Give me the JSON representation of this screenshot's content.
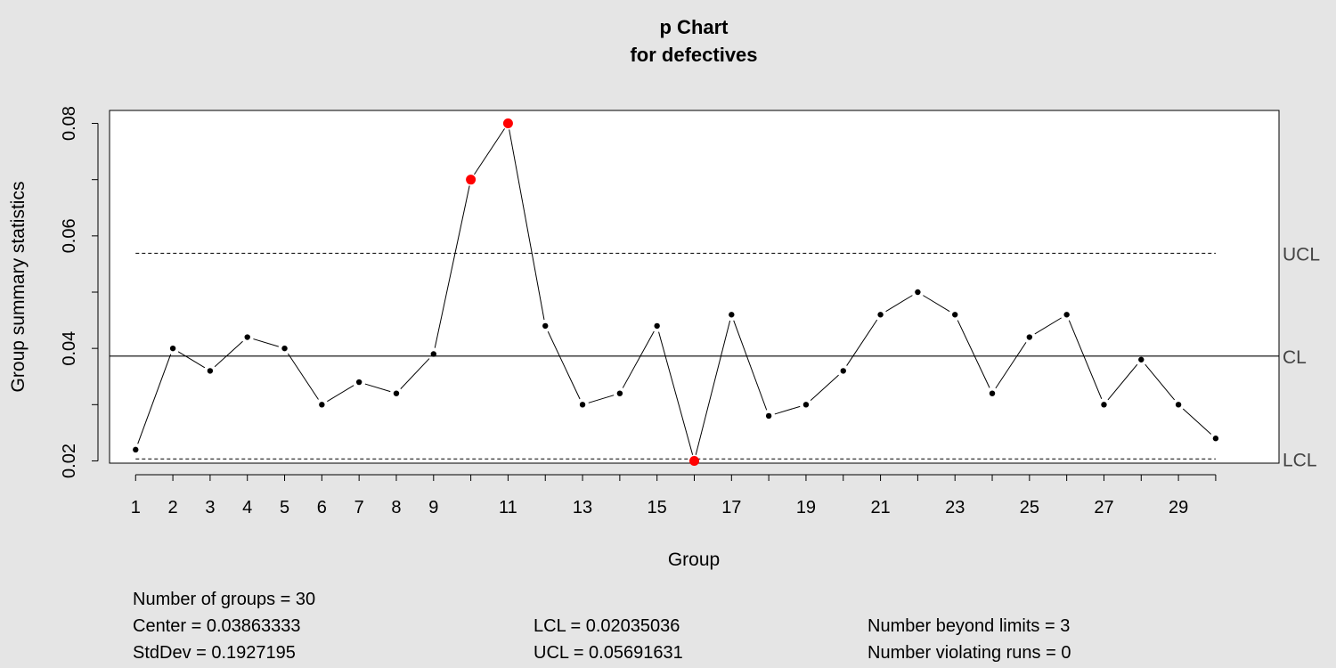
{
  "chart_data": {
    "type": "line",
    "title": "p Chart",
    "subtitle": "for defectives",
    "xlabel": "Group",
    "ylabel": "Group summary statistics",
    "x": [
      1,
      2,
      3,
      4,
      5,
      6,
      7,
      8,
      9,
      10,
      11,
      12,
      13,
      14,
      15,
      16,
      17,
      18,
      19,
      20,
      21,
      22,
      23,
      24,
      25,
      26,
      27,
      28,
      29,
      30
    ],
    "values": [
      0.022,
      0.04,
      0.036,
      0.042,
      0.04,
      0.03,
      0.034,
      0.032,
      0.039,
      0.07,
      0.08,
      0.044,
      0.03,
      0.032,
      0.044,
      0.02,
      0.046,
      0.028,
      0.03,
      0.036,
      0.046,
      0.05,
      0.046,
      0.032,
      0.042,
      0.046,
      0.03,
      0.038,
      0.03,
      0.024
    ],
    "out_of_control": [
      10,
      11,
      16
    ],
    "x_tick_labels": [
      "1",
      "2",
      "3",
      "4",
      "5",
      "6",
      "7",
      "8",
      "9",
      "11",
      "13",
      "15",
      "17",
      "19",
      "21",
      "23",
      "25",
      "27",
      "29"
    ],
    "y_ticks": [
      0.02,
      0.04,
      0.06,
      0.08
    ],
    "y_tick_labels": [
      "0.02",
      "0.04",
      "0.06",
      "0.08"
    ],
    "ylim": [
      0.0196,
      0.0823
    ],
    "xlim": [
      0.3,
      31.7
    ],
    "center_line": 0.03863333,
    "lcl": 0.02035036,
    "ucl": 0.05691631,
    "limit_labels": {
      "ucl": "UCL",
      "cl": "CL",
      "lcl": "LCL"
    },
    "colors": {
      "point": "#000000",
      "violation": "#ff0000",
      "line": "#000000",
      "background": "#e5e5e5",
      "plot_bg": "#ffffff"
    },
    "grid": false
  },
  "stats": {
    "groups": "Number of groups = 30",
    "center": "Center = 0.03863333",
    "stddev": "StdDev = 0.1927195",
    "lcl": "LCL = 0.02035036",
    "ucl": "UCL = 0.05691631",
    "beyond": "Number beyond limits = 3",
    "violating": "Number violating runs = 0"
  }
}
